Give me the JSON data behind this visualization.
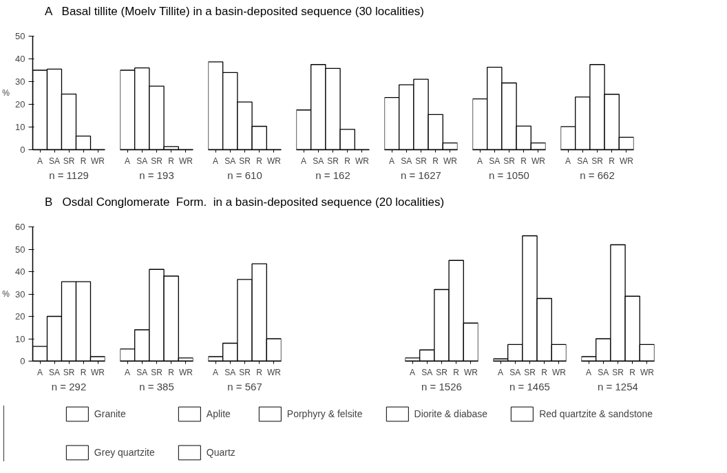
{
  "chart_data": [
    {
      "type": "bar",
      "title": "A   Basal tillite (Moelv Tillite) in a basin-deposited sequence (30 localities)",
      "ylabel": "%",
      "categories": [
        "A",
        "SA",
        "SR",
        "R",
        "WR"
      ],
      "ylim": [
        0,
        50
      ],
      "yticks": [
        0,
        10,
        20,
        30,
        40,
        50
      ],
      "legend": "bottom",
      "annotations": [
        "n = 1129"
      ],
      "series": [
        {
          "name": "Granite",
          "color": "#ffffff",
          "values": [
            35,
            35.5,
            24.5,
            6,
            0
          ]
        }
      ]
    },
    {
      "type": "bar",
      "categories": [
        "A",
        "SA",
        "SR",
        "R",
        "WR"
      ],
      "ylim": [
        0,
        50
      ],
      "yticks": [
        0,
        10,
        20,
        30,
        40,
        50
      ],
      "tick_labels": "x",
      "legend": "bottom",
      "annotations": [
        "n = 193"
      ],
      "series": [
        {
          "name": "Aplite",
          "color": "#ffffff",
          "values": [
            35,
            36,
            28,
            1.4,
            0
          ]
        }
      ]
    },
    {
      "type": "bar",
      "categories": [
        "A",
        "SA",
        "SR",
        "R",
        "WR"
      ],
      "ylim": [
        0,
        50
      ],
      "yticks": [
        0,
        10,
        20,
        30,
        40,
        50
      ],
      "tick_labels": "x",
      "legend": "bottom",
      "annotations": [
        "n = 610"
      ],
      "series": [
        {
          "name": "Porphyry & felsite",
          "color": "#ffffff",
          "values": [
            38.7,
            34,
            21,
            10.3,
            0
          ]
        }
      ]
    },
    {
      "type": "bar",
      "categories": [
        "A",
        "SA",
        "SR",
        "R",
        "WR"
      ],
      "ylim": [
        0,
        50
      ],
      "yticks": [
        0,
        10,
        20,
        30,
        40,
        50
      ],
      "tick_labels": "x",
      "legend": "bottom",
      "annotations": [
        "n = 162"
      ],
      "series": [
        {
          "name": "Diorite & diabase",
          "color": "#ffffff",
          "values": [
            17.5,
            37.5,
            35.8,
            9,
            0
          ]
        }
      ]
    },
    {
      "type": "bar",
      "categories": [
        "A",
        "SA",
        "SR",
        "R",
        "WR"
      ],
      "ylim": [
        0,
        50
      ],
      "yticks": [
        0,
        10,
        20,
        30,
        40,
        50
      ],
      "tick_labels": "x",
      "legend": "bottom",
      "annotations": [
        "n = 1627"
      ],
      "series": [
        {
          "name": "Red quartzite & sandstone",
          "color": "#ffffff",
          "values": [
            23,
            28.6,
            31,
            15.5,
            3
          ]
        }
      ]
    },
    {
      "type": "bar",
      "categories": [
        "A",
        "SA",
        "SR",
        "R",
        "WR"
      ],
      "ylim": [
        0,
        50
      ],
      "yticks": [
        0,
        10,
        20,
        30,
        40,
        50
      ],
      "tick_labels": "x",
      "legend": "bottom",
      "annotations": [
        "n = 1050"
      ],
      "series": [
        {
          "name": "Grey quartzite",
          "color": "#ffffff",
          "values": [
            22.4,
            36.3,
            29.4,
            10.4,
            3
          ]
        }
      ]
    },
    {
      "type": "bar",
      "categories": [
        "A",
        "SA",
        "SR",
        "R",
        "WR"
      ],
      "ylim": [
        0,
        50
      ],
      "yticks": [
        0,
        10,
        20,
        30,
        40,
        50
      ],
      "tick_labels": "x",
      "legend": "bottom",
      "annotations": [
        "n = 662"
      ],
      "series": [
        {
          "name": "Quartz",
          "color": "#ffffff",
          "values": [
            10.2,
            23.2,
            37.5,
            24.4,
            5.5
          ]
        }
      ]
    },
    {
      "type": "bar",
      "title": "B   Osdal Conglomerate  Form.  in a basin-deposited sequence (20 localities)",
      "ylabel": "%",
      "categories": [
        "A",
        "SA",
        "SR",
        "R",
        "WR"
      ],
      "ylim": [
        0,
        60
      ],
      "yticks": [
        0,
        10,
        20,
        30,
        40,
        50,
        60
      ],
      "annotations": [
        "n = 292"
      ],
      "series": [
        {
          "color": "#ffffff",
          "values": [
            6.6,
            20,
            35.5,
            35.5,
            2
          ]
        }
      ]
    },
    {
      "type": "bar",
      "categories": [
        "A",
        "SA",
        "SR",
        "R",
        "WR"
      ],
      "ylim": [
        0,
        60
      ],
      "yticks": [
        0,
        10,
        20,
        30,
        40,
        50,
        60
      ],
      "tick_labels": "x",
      "annotations": [
        "n = 385"
      ],
      "series": [
        {
          "color": "#ffffff",
          "values": [
            5.4,
            14,
            41,
            38,
            1.4
          ]
        }
      ]
    },
    {
      "type": "bar",
      "categories": [
        "A",
        "SA",
        "SR",
        "R",
        "WR"
      ],
      "ylim": [
        0,
        60
      ],
      "yticks": [
        0,
        10,
        20,
        30,
        40,
        50,
        60
      ],
      "tick_labels": "x",
      "annotations": [
        "n = 567"
      ],
      "series": [
        {
          "color": "#ffffff",
          "values": [
            2,
            8,
            36.5,
            43.5,
            10
          ]
        }
      ]
    },
    {
      "type": "bar",
      "categories": [
        "A",
        "SA",
        "SR",
        "R",
        "WR"
      ],
      "ylim": [
        0,
        60
      ],
      "yticks": [
        0,
        10,
        20,
        30,
        40,
        50,
        60
      ],
      "tick_labels": "x",
      "annotations": [
        "n = 1526"
      ],
      "series": [
        {
          "color": "#ffffff",
          "values": [
            1.4,
            5,
            32,
            45,
            17
          ]
        }
      ]
    },
    {
      "type": "bar",
      "categories": [
        "A",
        "SA",
        "SR",
        "R",
        "WR"
      ],
      "ylim": [
        0,
        60
      ],
      "yticks": [
        0,
        10,
        20,
        30,
        40,
        50,
        60
      ],
      "tick_labels": "x",
      "annotations": [
        "n = 1465"
      ],
      "series": [
        {
          "color": "#ffffff",
          "values": [
            1,
            7.4,
            56,
            28,
            7.4
          ]
        }
      ]
    },
    {
      "type": "bar",
      "categories": [
        "A",
        "SA",
        "SR",
        "R",
        "WR"
      ],
      "ylim": [
        0,
        60
      ],
      "yticks": [
        0,
        10,
        20,
        30,
        40,
        50,
        60
      ],
      "tick_labels": "x",
      "annotations": [
        "n = 1254"
      ],
      "series": [
        {
          "color": "#ffffff",
          "values": [
            2,
            10,
            52,
            29,
            7.4
          ]
        }
      ]
    }
  ]
}
